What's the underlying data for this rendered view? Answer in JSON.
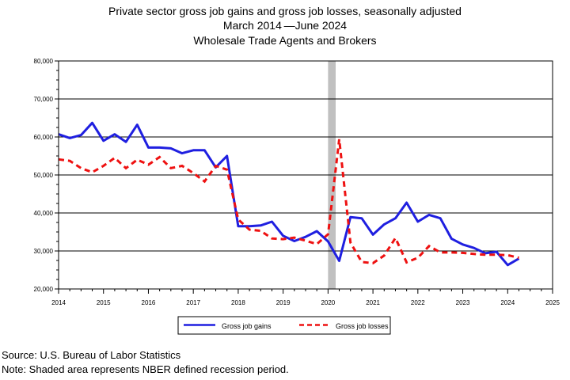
{
  "header": {
    "title_line1": "Private sector gross job gains and gross job losses, seasonally adjusted",
    "title_line2_start": "March 2014",
    "title_line2_end": "June 2024",
    "title_line3": "Wholesale Trade Agents and Brokers"
  },
  "footer": {
    "source": "Source: U.S. Bureau of Labor Statistics",
    "note": "Note: Shaded area represents NBER defined recession period."
  },
  "colors": {
    "gains": "#1f1fe0",
    "losses": "#ee1111",
    "recession": "#c0c0c0",
    "grid": "#000000"
  },
  "chart_data": {
    "type": "line",
    "title": "Private sector gross job gains and gross job losses, seasonally adjusted",
    "xlabel": "",
    "ylabel": "",
    "xlim": [
      2014,
      2025
    ],
    "ylim": [
      20000,
      80000
    ],
    "x_ticks": [
      "2014",
      "2015",
      "2016",
      "2017",
      "2018",
      "2019",
      "2020",
      "2021",
      "2022",
      "2023",
      "2024",
      "2025"
    ],
    "y_ticks": [
      "20,000",
      "30,000",
      "40,000",
      "50,000",
      "60,000",
      "70,000",
      "80,000"
    ],
    "y_tick_values": [
      20000,
      30000,
      40000,
      50000,
      60000,
      70000,
      80000
    ],
    "grid": "horizontal",
    "legend_position": "bottom",
    "recession": {
      "start": 2020.0,
      "end": 2020.17
    },
    "x": [
      2014.0,
      2014.25,
      2014.5,
      2014.75,
      2015.0,
      2015.25,
      2015.5,
      2015.75,
      2016.0,
      2016.25,
      2016.5,
      2016.75,
      2017.0,
      2017.25,
      2017.5,
      2017.75,
      2018.0,
      2018.25,
      2018.5,
      2018.75,
      2019.0,
      2019.25,
      2019.5,
      2019.75,
      2020.0,
      2020.25,
      2020.5,
      2020.75,
      2021.0,
      2021.25,
      2021.5,
      2021.75,
      2022.0,
      2022.25,
      2022.5,
      2022.75,
      2023.0,
      2023.25,
      2023.5,
      2023.75,
      2024.0,
      2024.25
    ],
    "series": [
      {
        "name": "Gross job gains",
        "style": "solid",
        "values": [
          60700,
          59700,
          60500,
          63700,
          59000,
          60700,
          58700,
          63200,
          57200,
          57200,
          57000,
          55700,
          56500,
          56500,
          52000,
          55000,
          36500,
          36500,
          36700,
          37700,
          34000,
          32600,
          33700,
          35200,
          32500,
          27400,
          38900,
          38600,
          34300,
          37000,
          38600,
          42700,
          37700,
          39500,
          38600,
          33200,
          31700,
          30800,
          29400,
          29800,
          26300,
          28000
        ]
      },
      {
        "name": "Gross job losses",
        "style": "dashed",
        "values": [
          54100,
          53700,
          51800,
          50700,
          52400,
          54500,
          51800,
          54000,
          52700,
          54700,
          51800,
          52400,
          50500,
          48300,
          52400,
          51400,
          38300,
          35600,
          35300,
          33300,
          33100,
          33500,
          32700,
          31800,
          34400,
          59400,
          32200,
          27100,
          26800,
          28800,
          33400,
          27000,
          28200,
          31300,
          29600,
          29600,
          29500,
          29200,
          29000,
          29000,
          28900,
          28200
        ]
      }
    ]
  }
}
